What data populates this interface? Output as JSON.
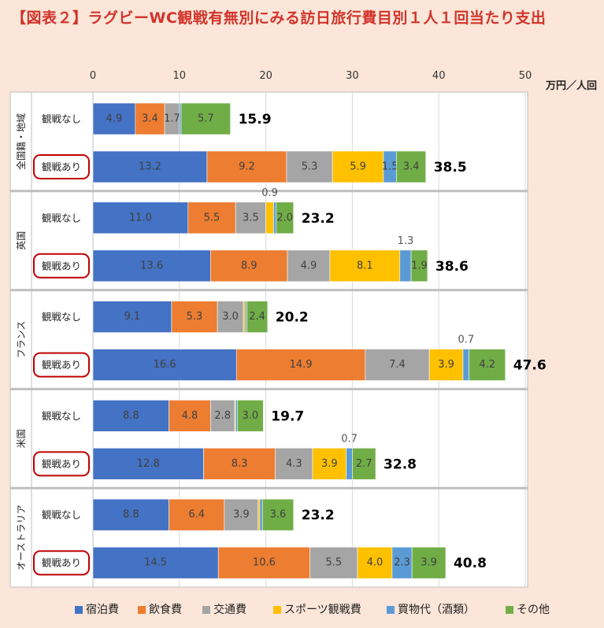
{
  "title": "【図表２】ラグビーWC観戦有無別にみる訪日旅行費目別１人１回当たり支出",
  "chart_data": {
    "type": "bar",
    "orientation": "horizontal",
    "stacked": true,
    "unit": "万円／人回",
    "xlim": [
      0,
      50
    ],
    "xticks": [
      0,
      10,
      20,
      30,
      40,
      50
    ],
    "xtick_labels": [
      "0",
      "10",
      "20",
      "30",
      "40",
      "50"
    ],
    "series": [
      {
        "name": "宿泊費",
        "color": "#4472c4"
      },
      {
        "name": "飲食費",
        "color": "#ed7d31"
      },
      {
        "name": "交通費",
        "color": "#a5a5a5"
      },
      {
        "name": "スポーツ観戦費",
        "color": "#ffc000"
      },
      {
        "name": "買物代（酒類）",
        "color": "#5b9bd5"
      },
      {
        "name": "その他",
        "color": "#70ad47"
      }
    ],
    "groups": [
      {
        "name": "全国籍・地域",
        "bars": [
          {
            "label": "観戦なし",
            "highlight": false,
            "values": [
              4.9,
              3.4,
              1.7,
              0,
              0.2,
              5.7
            ],
            "labels": [
              "4.9",
              "3.4",
              "1.7",
              "",
              "",
              "5.7"
            ],
            "total": "15.9"
          },
          {
            "label": "観戦あり",
            "highlight": true,
            "values": [
              13.2,
              9.2,
              5.3,
              5.9,
              1.5,
              3.4
            ],
            "labels": [
              "13.2",
              "9.2",
              "5.3",
              "5.9",
              "1.5",
              "3.4"
            ],
            "total": "38.5"
          }
        ]
      },
      {
        "name": "英国",
        "bars": [
          {
            "label": "観戦なし",
            "highlight": false,
            "values": [
              11.0,
              5.5,
              3.5,
              0.9,
              0.3,
              2.0
            ],
            "labels": [
              "11.0",
              "5.5",
              "3.5",
              "0.9",
              "",
              "2.0"
            ],
            "total": "23.2"
          },
          {
            "label": "観戦あり",
            "highlight": true,
            "values": [
              13.6,
              8.9,
              4.9,
              8.1,
              1.3,
              1.9
            ],
            "labels": [
              "13.6",
              "8.9",
              "4.9",
              "8.1",
              "1.3",
              "1.9"
            ],
            "total": "38.6"
          }
        ]
      },
      {
        "name": "フランス",
        "bars": [
          {
            "label": "観戦なし",
            "highlight": false,
            "values": [
              9.1,
              5.3,
              3.0,
              0.2,
              0.2,
              2.4
            ],
            "labels": [
              "9.1",
              "5.3",
              "3.0",
              "",
              "",
              "2.4"
            ],
            "total": "20.2"
          },
          {
            "label": "観戦あり",
            "highlight": true,
            "values": [
              16.6,
              14.9,
              7.4,
              3.9,
              0.7,
              4.2
            ],
            "labels": [
              "16.6",
              "14.9",
              "7.4",
              "3.9",
              "0.7",
              "4.2"
            ],
            "total": "47.6"
          }
        ]
      },
      {
        "name": "米国",
        "bars": [
          {
            "label": "観戦なし",
            "highlight": false,
            "values": [
              8.8,
              4.8,
              2.8,
              0.1,
              0.2,
              3.0
            ],
            "labels": [
              "8.8",
              "4.8",
              "2.8",
              "",
              "",
              "3.0"
            ],
            "total": "19.7"
          },
          {
            "label": "観戦あり",
            "highlight": true,
            "values": [
              12.8,
              8.3,
              4.3,
              3.9,
              0.7,
              2.7
            ],
            "labels": [
              "12.8",
              "8.3",
              "4.3",
              "3.9",
              "0.7",
              "2.7"
            ],
            "total": "32.8"
          }
        ]
      },
      {
        "name": "オーストラリア",
        "bars": [
          {
            "label": "観戦なし",
            "highlight": false,
            "values": [
              8.8,
              6.4,
              3.9,
              0.2,
              0.3,
              3.6
            ],
            "labels": [
              "8.8",
              "6.4",
              "3.9",
              "",
              "",
              "3.6"
            ],
            "total": "23.2"
          },
          {
            "label": "観戦あり",
            "highlight": true,
            "values": [
              14.5,
              10.6,
              5.5,
              4.0,
              2.3,
              3.9
            ],
            "labels": [
              "14.5",
              "10.6",
              "5.5",
              "4.0",
              "2.3",
              "3.9"
            ],
            "total": "40.8"
          }
        ]
      }
    ],
    "legend_position": "bottom"
  }
}
